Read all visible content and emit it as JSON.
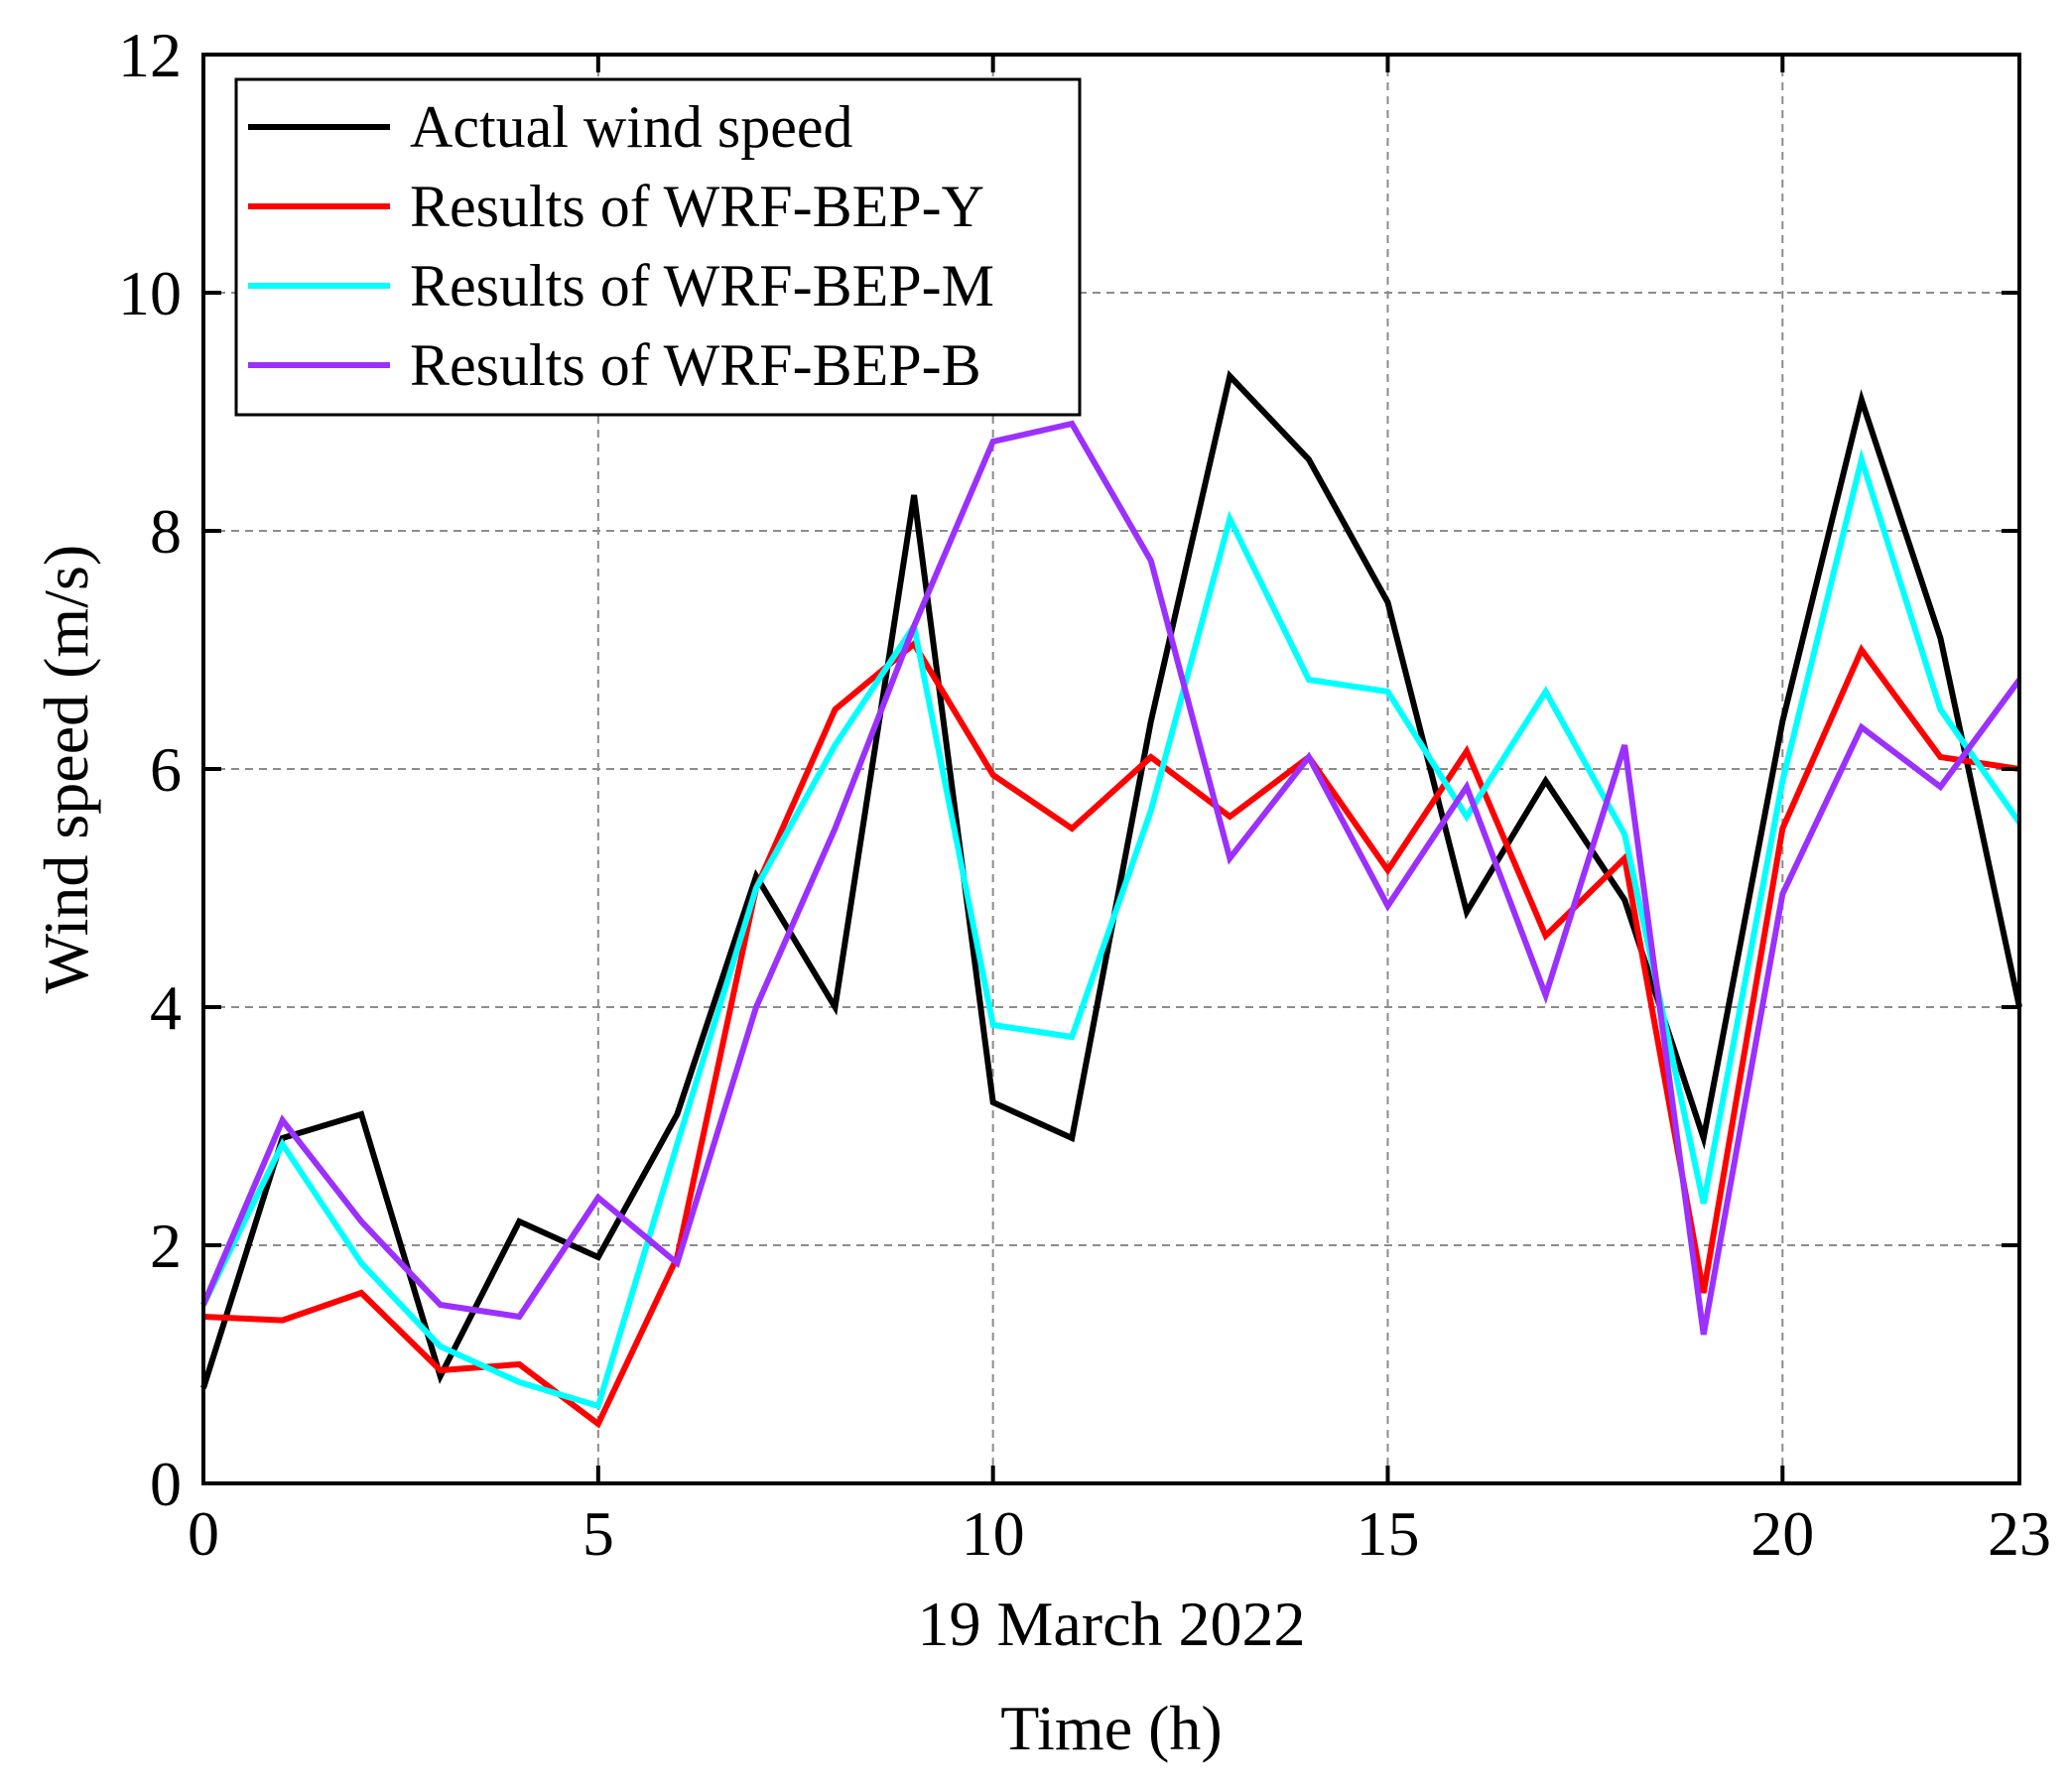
{
  "chart_data": {
    "type": "line",
    "title": "",
    "xlabel": "Time (h)",
    "xsublabel": "19 March 2022",
    "ylabel": "Wind speed (m/s)",
    "xlim": [
      0,
      23
    ],
    "ylim": [
      0,
      12
    ],
    "xticks": [
      0,
      5,
      10,
      15,
      20,
      23
    ],
    "yticks": [
      0,
      2,
      4,
      6,
      8,
      10,
      12
    ],
    "grid": true,
    "legend_position": "top-left",
    "x": [
      0,
      1,
      2,
      3,
      4,
      5,
      6,
      7,
      8,
      9,
      10,
      11,
      12,
      13,
      14,
      15,
      16,
      17,
      18,
      19,
      20,
      21,
      22,
      23
    ],
    "series": [
      {
        "name": "Actual wind speed",
        "color": "#000000",
        "values": [
          0.8,
          2.9,
          3.1,
          0.9,
          2.2,
          1.9,
          3.1,
          5.1,
          4.0,
          8.3,
          3.2,
          2.9,
          6.4,
          9.3,
          8.6,
          7.4,
          4.8,
          5.9,
          4.9,
          2.9,
          6.4,
          9.1,
          7.1,
          4.0
        ]
      },
      {
        "name": "Results of WRF-BEP-Y",
        "color": "#ff0000",
        "values": [
          1.4,
          1.37,
          1.6,
          0.95,
          1.0,
          0.5,
          1.9,
          5.0,
          6.5,
          7.05,
          5.95,
          5.5,
          6.1,
          5.6,
          6.1,
          5.15,
          6.15,
          4.6,
          5.25,
          1.6,
          5.5,
          7.0,
          6.1,
          6.0
        ]
      },
      {
        "name": "Results of WRF-BEP-M",
        "color": "#00ffff",
        "values": [
          1.5,
          2.85,
          1.85,
          1.15,
          0.85,
          0.65,
          2.85,
          5.0,
          6.2,
          7.2,
          3.85,
          3.75,
          5.65,
          8.1,
          6.75,
          6.65,
          5.6,
          6.65,
          5.45,
          2.35,
          5.9,
          8.6,
          6.5,
          5.55
        ]
      },
      {
        "name": "Results of WRF-BEP-B",
        "color": "#9b30ff",
        "values": [
          1.5,
          3.05,
          2.2,
          1.5,
          1.4,
          2.4,
          1.85,
          4.0,
          5.5,
          7.2,
          8.75,
          8.9,
          7.75,
          5.25,
          6.1,
          4.85,
          5.85,
          4.1,
          6.2,
          1.25,
          4.95,
          6.35,
          5.85,
          6.75
        ]
      }
    ]
  }
}
